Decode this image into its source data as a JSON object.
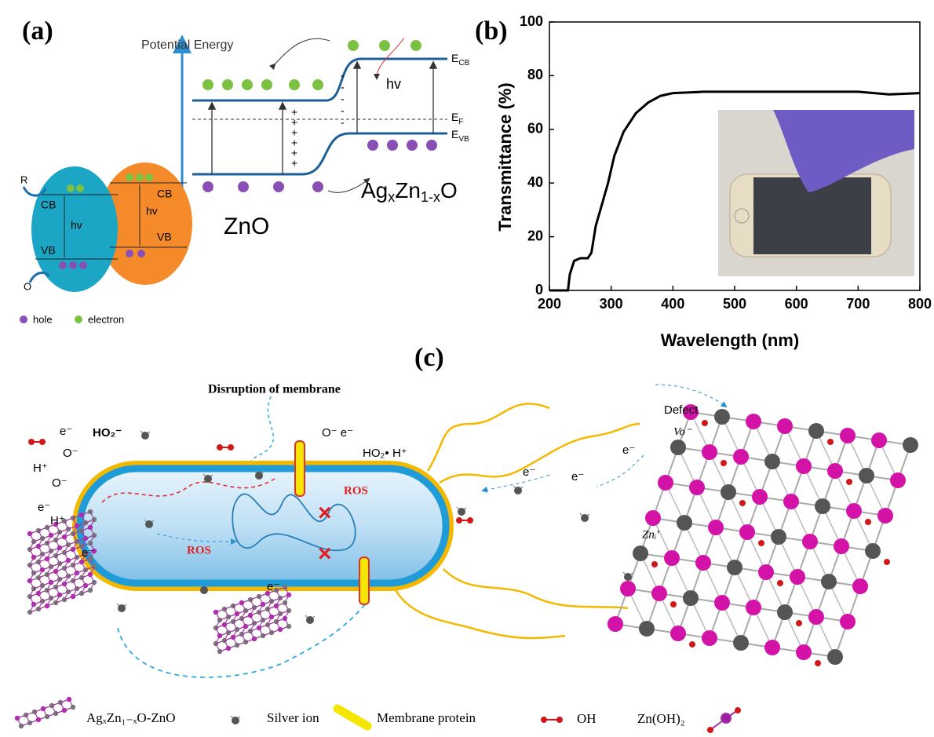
{
  "panel_a": {
    "label": "(a)",
    "axis_label": "Potential Energy",
    "ecb": {
      "main": "E",
      "sub": "CB"
    },
    "ef": {
      "main": "E",
      "sub": "F"
    },
    "evb": {
      "main": "E",
      "sub": "VB"
    },
    "hv": "hv",
    "plus": "+",
    "minus": "-",
    "zno": "ZnO",
    "agzno": {
      "p1": "Ag",
      "s1": "x",
      "p2": "Zn",
      "s2": "1-x",
      "p3": "O"
    },
    "cb": "CB",
    "vb": "VB",
    "r": "R",
    "o": "O",
    "legend_hole": "hole",
    "legend_electron": "electron"
  },
  "chart_data": {
    "type": "line",
    "label": "(b)",
    "x_label": "Wavelength (nm)",
    "y_label": "Transmittance (%)",
    "x": [
      200,
      230,
      233,
      240,
      250,
      262,
      268,
      275,
      285,
      295,
      305,
      320,
      340,
      360,
      380,
      400,
      450,
      500,
      550,
      600,
      650,
      700,
      750,
      800
    ],
    "values": [
      0,
      0,
      6,
      11,
      12,
      12,
      14,
      24,
      32,
      40,
      50,
      59,
      66,
      70,
      72.5,
      73.5,
      74,
      74,
      74,
      74,
      74,
      74,
      73,
      73.5
    ],
    "color": "#000000",
    "xlim": [
      200,
      800
    ],
    "ylim": [
      0,
      100
    ],
    "xticks": [
      200,
      300,
      400,
      500,
      600,
      700,
      800
    ],
    "yticks": [
      0,
      20,
      40,
      60,
      80,
      100
    ]
  },
  "panel_c": {
    "label": "(c)",
    "title": "Disruption of membrane",
    "labels": [
      "e⁻",
      "HO₂⁻",
      "O⁻",
      "H⁺",
      "O⁻ e⁻",
      "HO₂•",
      "ROS",
      "Defect",
      "Vo⁻",
      "Znᵢ′"
    ],
    "legend": [
      "AgₓZn₁₋ₓO-ZnO",
      "Silver ion",
      "Membrane protein",
      "OH",
      "Zn(OH)₂"
    ]
  }
}
